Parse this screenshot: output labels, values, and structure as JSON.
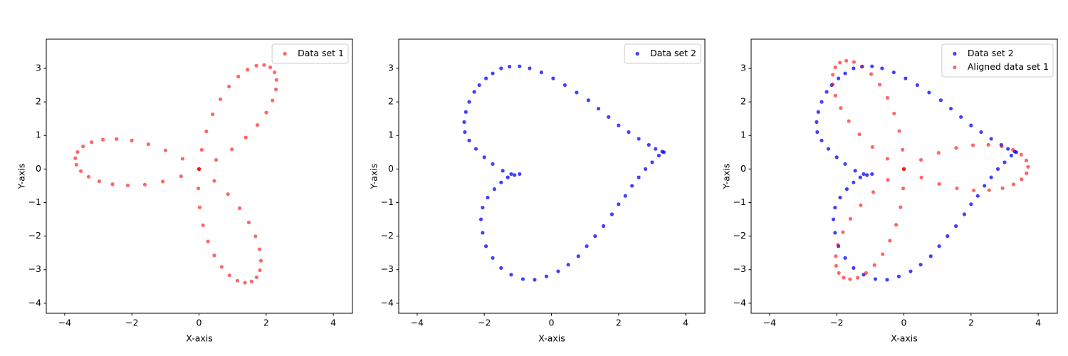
{
  "chart_data": [
    {
      "type": "scatter",
      "xlabel": "X-axis",
      "ylabel": "Y-axis",
      "legend": "upper right",
      "xlim": [
        -4.55,
        4.57
      ],
      "ylim": [
        -4.3,
        3.87
      ],
      "xticks": [
        {
          "value": -4,
          "label": "−4"
        },
        {
          "value": -2,
          "label": "−2"
        },
        0,
        2,
        4
      ],
      "yticks": [
        {
          "value": -4,
          "label": "−4"
        },
        {
          "value": -3,
          "label": "−3"
        },
        {
          "value": -2,
          "label": "−2"
        },
        {
          "value": -1,
          "label": "−1"
        },
        0,
        1,
        2,
        3
      ],
      "series": [
        {
          "name": "Data set 1",
          "color": "#ff0000",
          "alpha": 0.6,
          "x": [
            0,
            0.51,
            0.98,
            1.392,
            1.738,
            2.004,
            2.189,
            2.291,
            2.309,
            2.25,
            2.122,
            1.938,
            1.707,
            1.445,
            1.169,
            0.894,
            0.636,
            0.406,
            0.218,
            0.08,
            0,
            -0.489,
            -0.999,
            -1.51,
            -2.003,
            -2.458,
            -2.863,
            -3.199,
            -3.455,
            -3.619,
            -3.686,
            -3.653,
            -3.519,
            -3.289,
            -2.971,
            -2.576,
            -2.121,
            -1.614,
            -1.081,
            -0.535,
            0,
            -0.02,
            0.02,
            0.117,
            0.266,
            0.454,
            0.673,
            0.908,
            1.145,
            1.369,
            1.564,
            1.715,
            1.813,
            1.844,
            1.801,
            1.682,
            1.484,
            1.209,
            0.862,
            0.454
          ],
          "y": [
            0,
            0.271,
            0.588,
            0.94,
            1.311,
            1.682,
            2.042,
            2.371,
            2.656,
            2.88,
            3.031,
            3.1,
            3.078,
            2.963,
            2.756,
            2.458,
            2.081,
            1.63,
            1.122,
            0.571,
            0,
            0.306,
            0.554,
            0.737,
            0.85,
            0.894,
            0.875,
            0.798,
            0.672,
            0.508,
            0.323,
            0.128,
            -0.062,
            -0.23,
            -0.365,
            -0.454,
            -0.488,
            -0.463,
            -0.372,
            -0.216,
            0,
            -0.577,
            -1.143,
            -1.675,
            -2.16,
            -2.576,
            -2.917,
            -3.169,
            -3.328,
            -3.389,
            -3.353,
            -3.227,
            -3.016,
            -2.733,
            -2.391,
            -2.004,
            -1.592,
            -1.167,
            -0.749,
            -0.355
          ]
        }
      ]
    },
    {
      "type": "scatter",
      "xlabel": "X-axis",
      "ylabel": "Y-axis",
      "legend": "upper right",
      "xlim": [
        -4.55,
        4.57
      ],
      "ylim": [
        -4.3,
        3.87
      ],
      "xticks": [
        {
          "value": -4,
          "label": "−4"
        },
        {
          "value": -2,
          "label": "−2"
        },
        0,
        2,
        4
      ],
      "yticks": [
        {
          "value": -4,
          "label": "−4"
        },
        {
          "value": -3,
          "label": "−3"
        },
        {
          "value": -2,
          "label": "−2"
        },
        {
          "value": -1,
          "label": "−1"
        },
        0,
        1,
        2,
        3
      ],
      "series": [
        {
          "name": "Data set 2",
          "color": "#0000ff",
          "alpha": 0.75,
          "x": [
            -0.95,
            -1.2,
            -1.45,
            -1.75,
            -2,
            -2.25,
            -2.45,
            -2.58,
            -2.6,
            -2.55,
            -2.45,
            -2.3,
            -2.15,
            -1.95,
            -1.75,
            -1.5,
            -1.25,
            -0.95,
            -0.65,
            -0.3,
            0.05,
            0.4,
            0.75,
            1.1,
            1.4,
            1.7,
            2,
            2.3,
            2.6,
            2.9,
            3.1,
            3.3,
            3.35,
            3.2,
            3,
            2.8,
            2.6,
            2.4,
            2.2,
            2,
            1.8,
            1.55,
            1.3,
            1.05,
            0.8,
            0.5,
            0.2,
            -0.15,
            -0.5,
            -0.85,
            -1.2,
            -1.5,
            -1.75,
            -1.95,
            -2.05,
            -2.1,
            -2.05,
            -1.9,
            -1.7,
            -1.5,
            -1.3,
            -1.1
          ],
          "y": [
            -0.15,
            -0.15,
            -0.05,
            0.15,
            0.35,
            0.6,
            0.85,
            1.1,
            1.4,
            1.7,
            2,
            2.3,
            2.5,
            2.7,
            2.85,
            3,
            3.05,
            3.06,
            3,
            2.88,
            2.7,
            2.5,
            2.28,
            2.05,
            1.8,
            1.55,
            1.3,
            1.1,
            0.9,
            0.72,
            0.6,
            0.52,
            0.5,
            0.4,
            0.2,
            0,
            -0.25,
            -0.5,
            -0.8,
            -1.05,
            -1.35,
            -1.7,
            -2,
            -2.3,
            -2.6,
            -2.85,
            -3.05,
            -3.2,
            -3.3,
            -3.28,
            -3.15,
            -2.95,
            -2.65,
            -2.3,
            -1.9,
            -1.5,
            -1.15,
            -0.85,
            -0.6,
            -0.4,
            -0.25,
            -0.18
          ]
        }
      ]
    },
    {
      "type": "scatter",
      "xlabel": "X-axis",
      "ylabel": "Y-axis",
      "legend": "upper right",
      "xlim": [
        -4.55,
        4.57
      ],
      "ylim": [
        -4.3,
        3.87
      ],
      "xticks": [
        {
          "value": -4,
          "label": "−4"
        },
        {
          "value": -2,
          "label": "−2"
        },
        0,
        2,
        4
      ],
      "yticks": [
        {
          "value": -4,
          "label": "−4"
        },
        {
          "value": -3,
          "label": "−3"
        },
        {
          "value": -2,
          "label": "−2"
        },
        {
          "value": -1,
          "label": "−1"
        },
        0,
        1,
        2,
        3
      ],
      "series": [
        {
          "name": "Data set 2",
          "color": "#0000ff",
          "alpha": 0.75,
          "x": [
            -0.95,
            -1.2,
            -1.45,
            -1.75,
            -2,
            -2.25,
            -2.45,
            -2.58,
            -2.6,
            -2.55,
            -2.45,
            -2.3,
            -2.15,
            -1.95,
            -1.75,
            -1.5,
            -1.25,
            -0.95,
            -0.65,
            -0.3,
            0.05,
            0.4,
            0.75,
            1.1,
            1.4,
            1.7,
            2,
            2.3,
            2.6,
            2.9,
            3.1,
            3.3,
            3.35,
            3.2,
            3,
            2.8,
            2.6,
            2.4,
            2.2,
            2,
            1.8,
            1.55,
            1.3,
            1.05,
            0.8,
            0.5,
            0.2,
            -0.15,
            -0.5,
            -0.85,
            -1.2,
            -1.5,
            -1.75,
            -1.95,
            -2.05,
            -2.1,
            -2.05,
            -1.9,
            -1.7,
            -1.5,
            -1.3,
            -1.1
          ],
          "y": [
            -0.15,
            -0.15,
            -0.05,
            0.15,
            0.35,
            0.6,
            0.85,
            1.1,
            1.4,
            1.7,
            2,
            2.3,
            2.5,
            2.7,
            2.85,
            3,
            3.05,
            3.06,
            3,
            2.88,
            2.7,
            2.5,
            2.28,
            2.05,
            1.8,
            1.55,
            1.3,
            1.1,
            0.9,
            0.72,
            0.6,
            0.52,
            0.5,
            0.4,
            0.2,
            0,
            -0.25,
            -0.5,
            -0.8,
            -1.05,
            -1.35,
            -1.7,
            -2,
            -2.3,
            -2.6,
            -2.85,
            -3.05,
            -3.2,
            -3.3,
            -3.28,
            -3.15,
            -2.95,
            -2.65,
            -2.3,
            -1.9,
            -1.5,
            -1.15,
            -0.85,
            -0.6,
            -0.4,
            -0.25,
            -0.18
          ]
        },
        {
          "name": "Aligned data set 1",
          "color": "#ff0000",
          "alpha": 0.6,
          "x": [
            0,
            -0.04,
            -0.139,
            -0.292,
            -0.49,
            -0.721,
            -0.975,
            -1.235,
            -1.488,
            -1.716,
            -1.906,
            -2.044,
            -2.118,
            -2.119,
            -2.041,
            -1.881,
            -1.642,
            -1.324,
            -0.937,
            -0.49,
            0,
            0.519,
            1.052,
            1.579,
            2.082,
            2.539,
            2.939,
            3.265,
            3.506,
            3.653,
            3.699,
            3.647,
            3.494,
            3.247,
            2.917,
            2.515,
            2.058,
            1.557,
            1.036,
            0.509,
            0,
            -0.478,
            -0.913,
            -1.287,
            -1.592,
            -1.817,
            -1.963,
            -2.03,
            -2.019,
            -1.937,
            -1.794,
            -1.603,
            -1.375,
            -1.128,
            -0.875,
            -0.633,
            -0.416,
            -0.233,
            -0.099,
            -0.02
          ],
          "y": [
            0,
            0.576,
            1.134,
            1.654,
            2.12,
            2.515,
            2.83,
            3.057,
            3.19,
            3.227,
            3.172,
            3.031,
            2.81,
            2.525,
            2.19,
            1.817,
            1.428,
            1.034,
            0.656,
            0.306,
            0,
            -0.253,
            -0.447,
            -0.575,
            -0.636,
            -0.633,
            -0.571,
            -0.459,
            -0.307,
            -0.127,
            0.065,
            0.255,
            0.429,
            0.573,
            0.673,
            0.721,
            0.708,
            0.629,
            0.483,
            0.271,
            0,
            -0.323,
            -0.688,
            -1.079,
            -1.484,
            -1.882,
            -2.259,
            -2.598,
            -2.883,
            -3.099,
            -3.236,
            -3.285,
            -3.239,
            -3.098,
            -2.863,
            -2.538,
            -2.136,
            -1.663,
            -1.138,
            -0.577
          ]
        }
      ]
    }
  ]
}
